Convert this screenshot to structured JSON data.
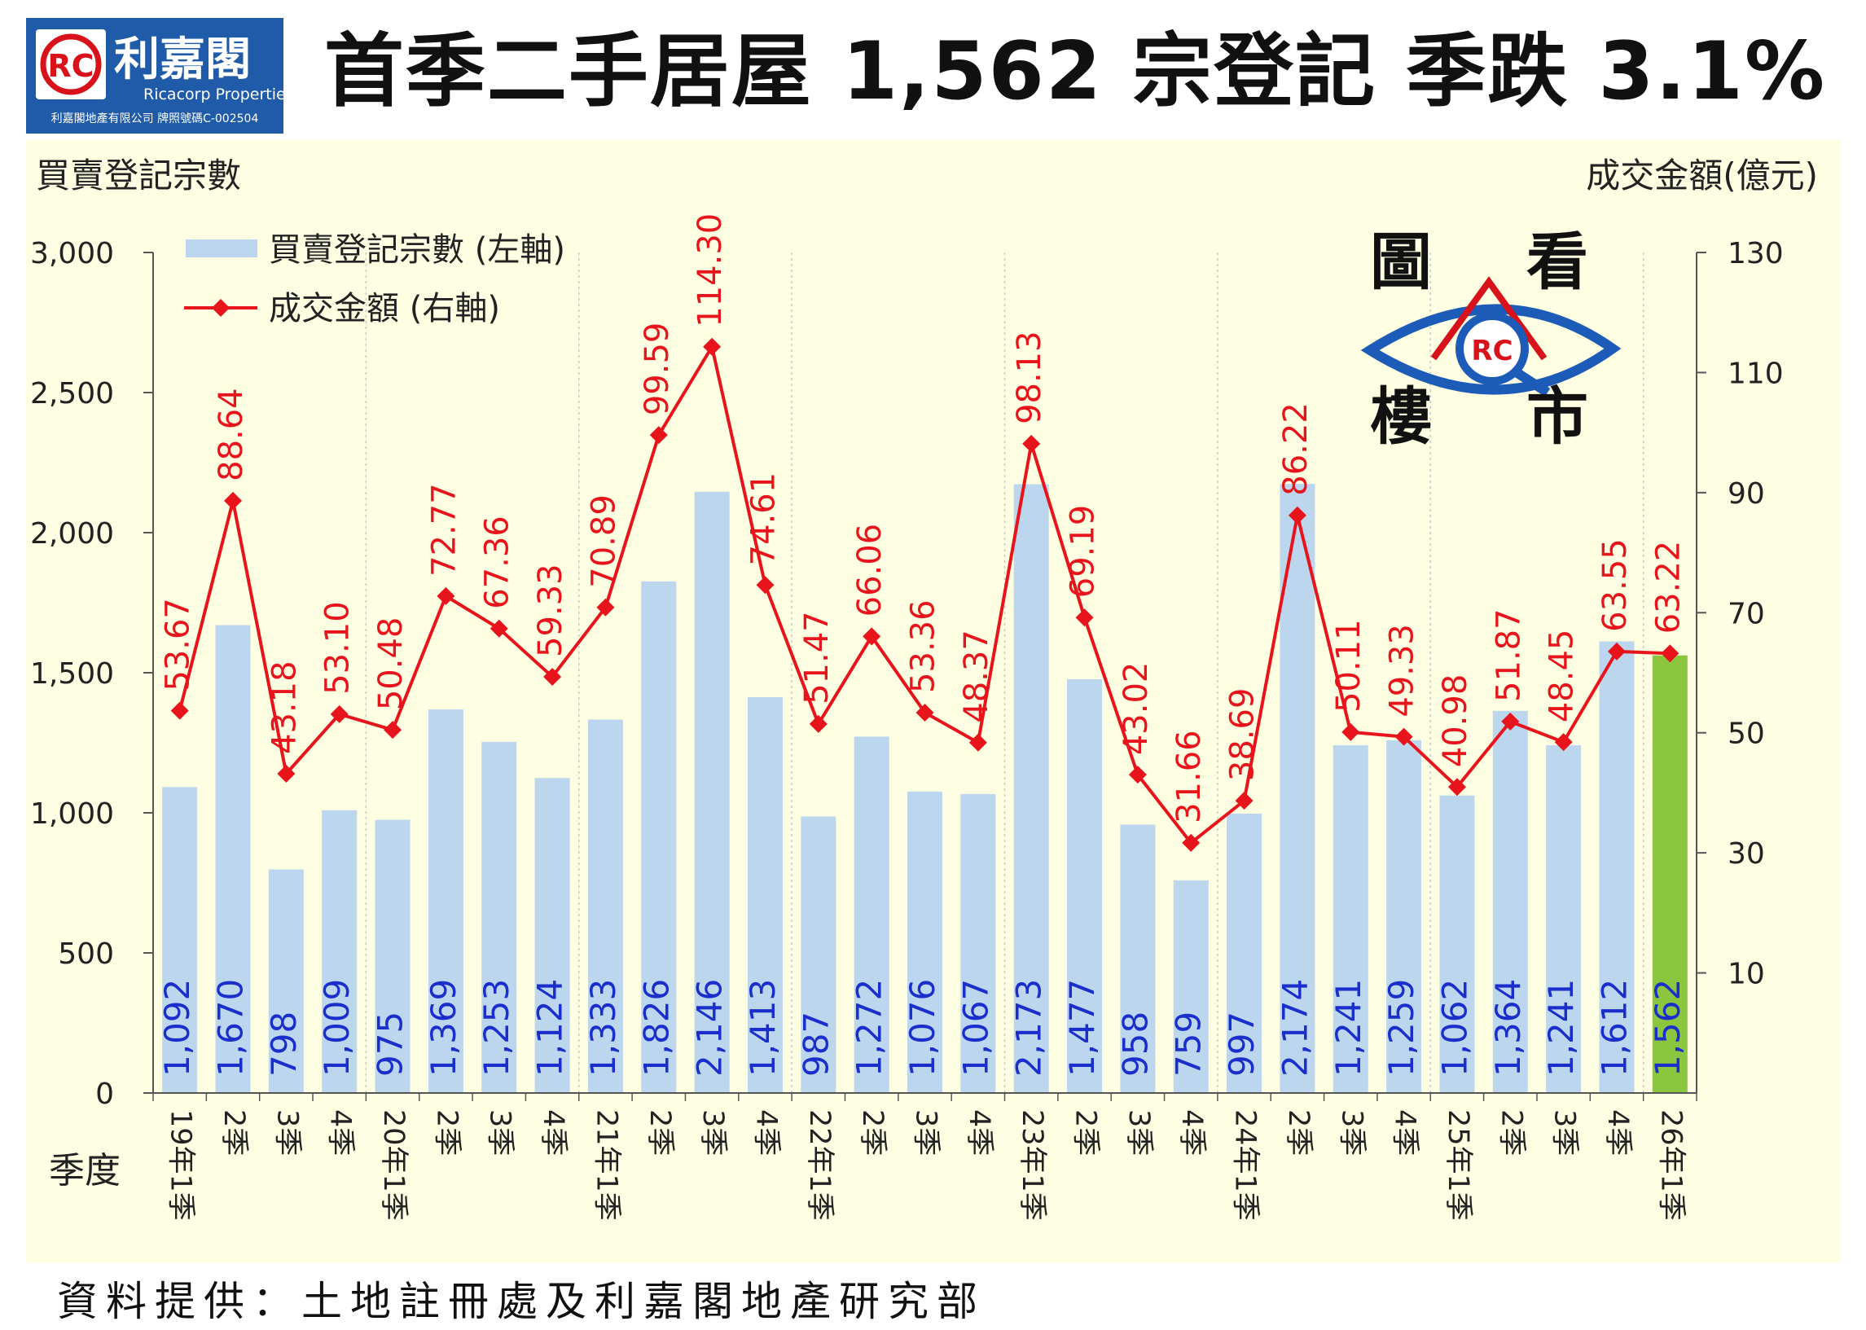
{
  "header": {
    "title": "首季二手居屋 1,562 宗登記  季跌 3.1%",
    "logo_name": "利嘉閣",
    "logo_en": "Ricacorp Properties",
    "logo_license": "利嘉閣地產有限公司 牌照號碼C-002504"
  },
  "badge": {
    "chars": [
      "圖",
      "看",
      "樓",
      "市"
    ]
  },
  "source": "資料提供：土地註冊處及利嘉閣地產研究部",
  "colors": {
    "bar": "#bcd6ee",
    "bar_highlight": "#8cc63f",
    "line": "#e8141b",
    "bar_label": "#1a2ecc",
    "plot_bg": "#fefee3"
  },
  "chart_data": {
    "type": "bar",
    "ylabel": "買賣登記宗數",
    "y2label": "成交金額(億元)",
    "xlabel": "季度",
    "ylim": [
      0,
      3000
    ],
    "y2lim": [
      -10,
      130
    ],
    "yticks": [
      "0",
      "500",
      "1,000",
      "1,500",
      "2,000",
      "2,500",
      "3,000"
    ],
    "y2ticks": [
      "10",
      "30",
      "50",
      "70",
      "90",
      "110",
      "130"
    ],
    "categories": [
      "19年1季",
      "2季",
      "3季",
      "4季",
      "20年1季",
      "2季",
      "3季",
      "4季",
      "21年1季",
      "2季",
      "3季",
      "4季",
      "22年1季",
      "2季",
      "3季",
      "4季",
      "23年1季",
      "2季",
      "3季",
      "4季",
      "24年1季",
      "2季",
      "3季",
      "4季",
      "25年1季",
      "2季",
      "3季",
      "4季",
      "26年1季"
    ],
    "legend": [
      "買賣登記宗數 (左軸)",
      "成交金額 (右軸)"
    ],
    "series": [
      {
        "name": "買賣登記宗數 (左軸)",
        "type": "bar",
        "values": [
          1092,
          1670,
          798,
          1009,
          975,
          1369,
          1253,
          1124,
          1333,
          1826,
          2146,
          1413,
          987,
          1272,
          1076,
          1067,
          2173,
          1477,
          958,
          759,
          997,
          2174,
          1241,
          1259,
          1062,
          1364,
          1241,
          1612,
          1562
        ],
        "labels": [
          "1,092",
          "1,670",
          "798",
          "1,009",
          "975",
          "1,369",
          "1,253",
          "1,124",
          "1,333",
          "1,826",
          "2,146",
          "1,413",
          "987",
          "1,272",
          "1,076",
          "1,067",
          "2,173",
          "1,477",
          "958",
          "759",
          "997",
          "2,174",
          "1,241",
          "1,259",
          "1,062",
          "1,364",
          "1,241",
          "1,612",
          "1,562"
        ]
      },
      {
        "name": "成交金額 (右軸)",
        "type": "line",
        "values": [
          53.67,
          88.64,
          43.18,
          53.1,
          50.48,
          72.77,
          67.36,
          59.33,
          70.89,
          99.59,
          114.3,
          74.61,
          51.47,
          66.06,
          53.36,
          48.37,
          98.13,
          69.19,
          43.02,
          31.66,
          38.69,
          86.22,
          50.11,
          49.33,
          40.98,
          51.87,
          48.45,
          63.55,
          63.22
        ],
        "labels": [
          "53.67",
          "88.64",
          "43.18",
          "53.10",
          "50.48",
          "72.77",
          "67.36",
          "59.33",
          "70.89",
          "99.59",
          "114.30",
          "74.61",
          "51.47",
          "66.06",
          "53.36",
          "48.37",
          "98.13",
          "69.19",
          "43.02",
          "31.66",
          "38.69",
          "86.22",
          "50.11",
          "49.33",
          "40.98",
          "51.87",
          "48.45",
          "63.55",
          "63.22"
        ]
      }
    ]
  }
}
